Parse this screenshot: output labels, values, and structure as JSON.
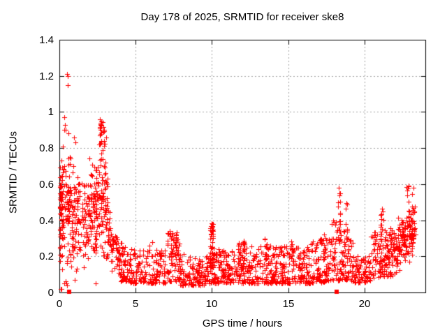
{
  "chart_data": {
    "type": "scatter",
    "title": "Day 178 of 2025, SRMTID for receiver ske8",
    "xlabel": "GPS time / hours",
    "ylabel": "SRMTID / TECUs",
    "xlim": [
      0,
      24
    ],
    "ylim": [
      0,
      1.4
    ],
    "xticks": {
      "values": [
        0,
        5,
        10,
        15,
        20
      ],
      "labels": [
        "0",
        "5",
        "10",
        "15",
        "20"
      ]
    },
    "yticks": {
      "values": [
        0,
        0.2,
        0.4,
        0.6,
        0.8,
        1.0,
        1.2,
        1.4
      ],
      "labels": [
        "0",
        "0.2",
        "0.4",
        "0.6",
        "0.8",
        "1",
        "1.2",
        "1.4"
      ]
    },
    "grid": {
      "visible": true,
      "style": "dotted"
    },
    "legend": {
      "visible": false
    },
    "marker": {
      "shape": "plus",
      "size": 7,
      "color": "#ff0000"
    },
    "colors": {
      "marker": "#ff0000",
      "grid": "#a0a0a0",
      "axis": "#000000",
      "text": "#000000",
      "background": "#ffffff"
    },
    "seed": 20250178,
    "bands": [
      {
        "x0": 0.02,
        "x1": 0.18,
        "n": 55,
        "ymin0": 0.13,
        "ymin1": 0.12,
        "ymax0": 0.8,
        "ymax1": 0.8,
        "dist": "tri"
      },
      {
        "x0": 0.18,
        "x1": 0.95,
        "n": 100,
        "ymin0": 0.05,
        "ymin1": 0.08,
        "ymax0": 0.88,
        "ymax1": 0.82,
        "dist": "tri"
      },
      {
        "x0": 0.95,
        "x1": 1.85,
        "n": 85,
        "ymin0": 0.1,
        "ymin1": 0.12,
        "ymax0": 0.78,
        "ymax1": 0.72,
        "dist": "tri"
      },
      {
        "x0": 1.85,
        "x1": 3.15,
        "n": 175,
        "ymin0": 0.13,
        "ymin1": 0.15,
        "ymax0": 0.75,
        "ymax1": 0.82,
        "dist": "tri"
      },
      {
        "x0": 3.15,
        "x1": 3.95,
        "n": 65,
        "ymin0": 0.1,
        "ymin1": 0.09,
        "ymax0": 0.55,
        "ymax1": 0.3,
        "dist": "tri"
      },
      {
        "x0": 3.95,
        "x1": 4.6,
        "n": 55,
        "ymin0": 0.06,
        "ymin1": 0.06,
        "ymax0": 0.3,
        "ymax1": 0.22,
        "dist": "pow",
        "pw": 1.5
      },
      {
        "x0": 4.6,
        "x1": 7.0,
        "n": 155,
        "ymin0": 0.05,
        "ymin1": 0.05,
        "ymax0": 0.24,
        "ymax1": 0.24,
        "dist": "pow",
        "pw": 1.7
      },
      {
        "x0": 7.0,
        "x1": 7.9,
        "n": 75,
        "ymin0": 0.06,
        "ymin1": 0.06,
        "ymax0": 0.36,
        "ymax1": 0.3,
        "dist": "pow",
        "pw": 1.5
      },
      {
        "x0": 7.9,
        "x1": 9.6,
        "n": 120,
        "ymin0": 0.04,
        "ymin1": 0.04,
        "ymax0": 0.22,
        "ymax1": 0.18,
        "dist": "pow",
        "pw": 1.6
      },
      {
        "x0": 9.6,
        "x1": 10.2,
        "n": 45,
        "ymin0": 0.05,
        "ymin1": 0.05,
        "ymax0": 0.22,
        "ymax1": 0.25,
        "dist": "pow",
        "pw": 1.5
      },
      {
        "x0": 10.2,
        "x1": 11.6,
        "n": 100,
        "ymin0": 0.05,
        "ymin1": 0.05,
        "ymax0": 0.24,
        "ymax1": 0.24,
        "dist": "pow",
        "pw": 1.6
      },
      {
        "x0": 11.6,
        "x1": 14.2,
        "n": 190,
        "ymin0": 0.05,
        "ymin1": 0.05,
        "ymax0": 0.28,
        "ymax1": 0.26,
        "dist": "pow",
        "pw": 1.7
      },
      {
        "x0": 14.2,
        "x1": 16.3,
        "n": 150,
        "ymin0": 0.05,
        "ymin1": 0.05,
        "ymax0": 0.26,
        "ymax1": 0.26,
        "dist": "pow",
        "pw": 1.7
      },
      {
        "x0": 16.3,
        "x1": 17.85,
        "n": 110,
        "ymin0": 0.05,
        "ymin1": 0.06,
        "ymax0": 0.28,
        "ymax1": 0.32,
        "dist": "pow",
        "pw": 1.6
      },
      {
        "x0": 17.85,
        "x1": 19.25,
        "n": 115,
        "ymin0": 0.07,
        "ymin1": 0.06,
        "ymax0": 0.45,
        "ymax1": 0.3,
        "dist": "pow",
        "pw": 1.4
      },
      {
        "x0": 19.25,
        "x1": 20.4,
        "n": 80,
        "ymin0": 0.05,
        "ymin1": 0.06,
        "ymax0": 0.2,
        "ymax1": 0.2,
        "dist": "pow",
        "pw": 1.5
      },
      {
        "x0": 20.4,
        "x1": 21.9,
        "n": 130,
        "ymin0": 0.08,
        "ymin1": 0.09,
        "ymax0": 0.33,
        "ymax1": 0.36,
        "dist": "pow",
        "pw": 1.3
      },
      {
        "x0": 21.9,
        "x1": 23.35,
        "n": 155,
        "ymin0": 0.08,
        "ymin1": 0.17,
        "ymax0": 0.4,
        "ymax1": 0.5,
        "dist": "tri"
      }
    ],
    "columns": [
      {
        "x": 2.8,
        "w": 0.35,
        "n": 28,
        "y0": 0.7,
        "y1": 0.97
      },
      {
        "x": 7.4,
        "w": 0.18,
        "n": 12,
        "y0": 0.2,
        "y1": 0.35
      },
      {
        "x": 7.62,
        "w": 0.15,
        "n": 10,
        "y0": 0.2,
        "y1": 0.34
      },
      {
        "x": 10.0,
        "w": 0.22,
        "n": 50,
        "y0": 0.13,
        "y1": 0.41
      },
      {
        "x": 12.1,
        "w": 0.16,
        "n": 12,
        "y0": 0.17,
        "y1": 0.29
      },
      {
        "x": 13.55,
        "w": 0.16,
        "n": 12,
        "y0": 0.17,
        "y1": 0.3
      },
      {
        "x": 15.3,
        "w": 0.16,
        "n": 10,
        "y0": 0.16,
        "y1": 0.29
      },
      {
        "x": 17.4,
        "w": 0.18,
        "n": 10,
        "y0": 0.18,
        "y1": 0.32
      },
      {
        "x": 18.35,
        "w": 0.16,
        "n": 16,
        "y0": 0.25,
        "y1": 0.55
      },
      {
        "x": 18.85,
        "w": 0.2,
        "n": 12,
        "y0": 0.2,
        "y1": 0.5
      },
      {
        "x": 21.15,
        "w": 0.2,
        "n": 14,
        "y0": 0.25,
        "y1": 0.47
      },
      {
        "x": 22.85,
        "w": 0.15,
        "n": 12,
        "y0": 0.35,
        "y1": 0.6
      },
      {
        "x": 23.1,
        "w": 0.13,
        "n": 10,
        "y0": 0.3,
        "y1": 0.55
      }
    ],
    "points": [
      [
        0.52,
        1.21
      ],
      [
        0.56,
        1.2
      ],
      [
        0.55,
        1.15
      ],
      [
        0.33,
        0.97
      ],
      [
        0.3,
        0.9
      ],
      [
        0.38,
        0.93
      ],
      [
        0.42,
        0.9
      ],
      [
        0.6,
        0.88
      ],
      [
        0.95,
        0.86
      ],
      [
        1.05,
        0.83
      ],
      [
        2.95,
        0.9
      ],
      [
        3.05,
        0.86
      ],
      [
        0.07,
        0.02
      ],
      [
        0.16,
        0.02
      ],
      [
        0.3,
        0.05
      ],
      [
        0.45,
        0.05
      ],
      [
        0.5,
        0.04
      ],
      [
        0.4,
        0.06
      ],
      [
        2.4,
        0.05
      ],
      [
        1.0,
        0.07
      ],
      [
        18.3,
        0.58
      ],
      [
        18.38,
        0.55
      ],
      [
        23.22,
        0.58
      ],
      [
        23.28,
        0.45
      ],
      [
        20.0,
        0.12
      ],
      [
        6.1,
        0.28
      ],
      [
        5.9,
        0.26
      ]
    ],
    "axis_markers": {
      "shape": "square",
      "size": 6,
      "color": "#ff0000",
      "points": [
        [
          0.64,
          0.005
        ],
        [
          18.2,
          0.005
        ]
      ]
    }
  }
}
